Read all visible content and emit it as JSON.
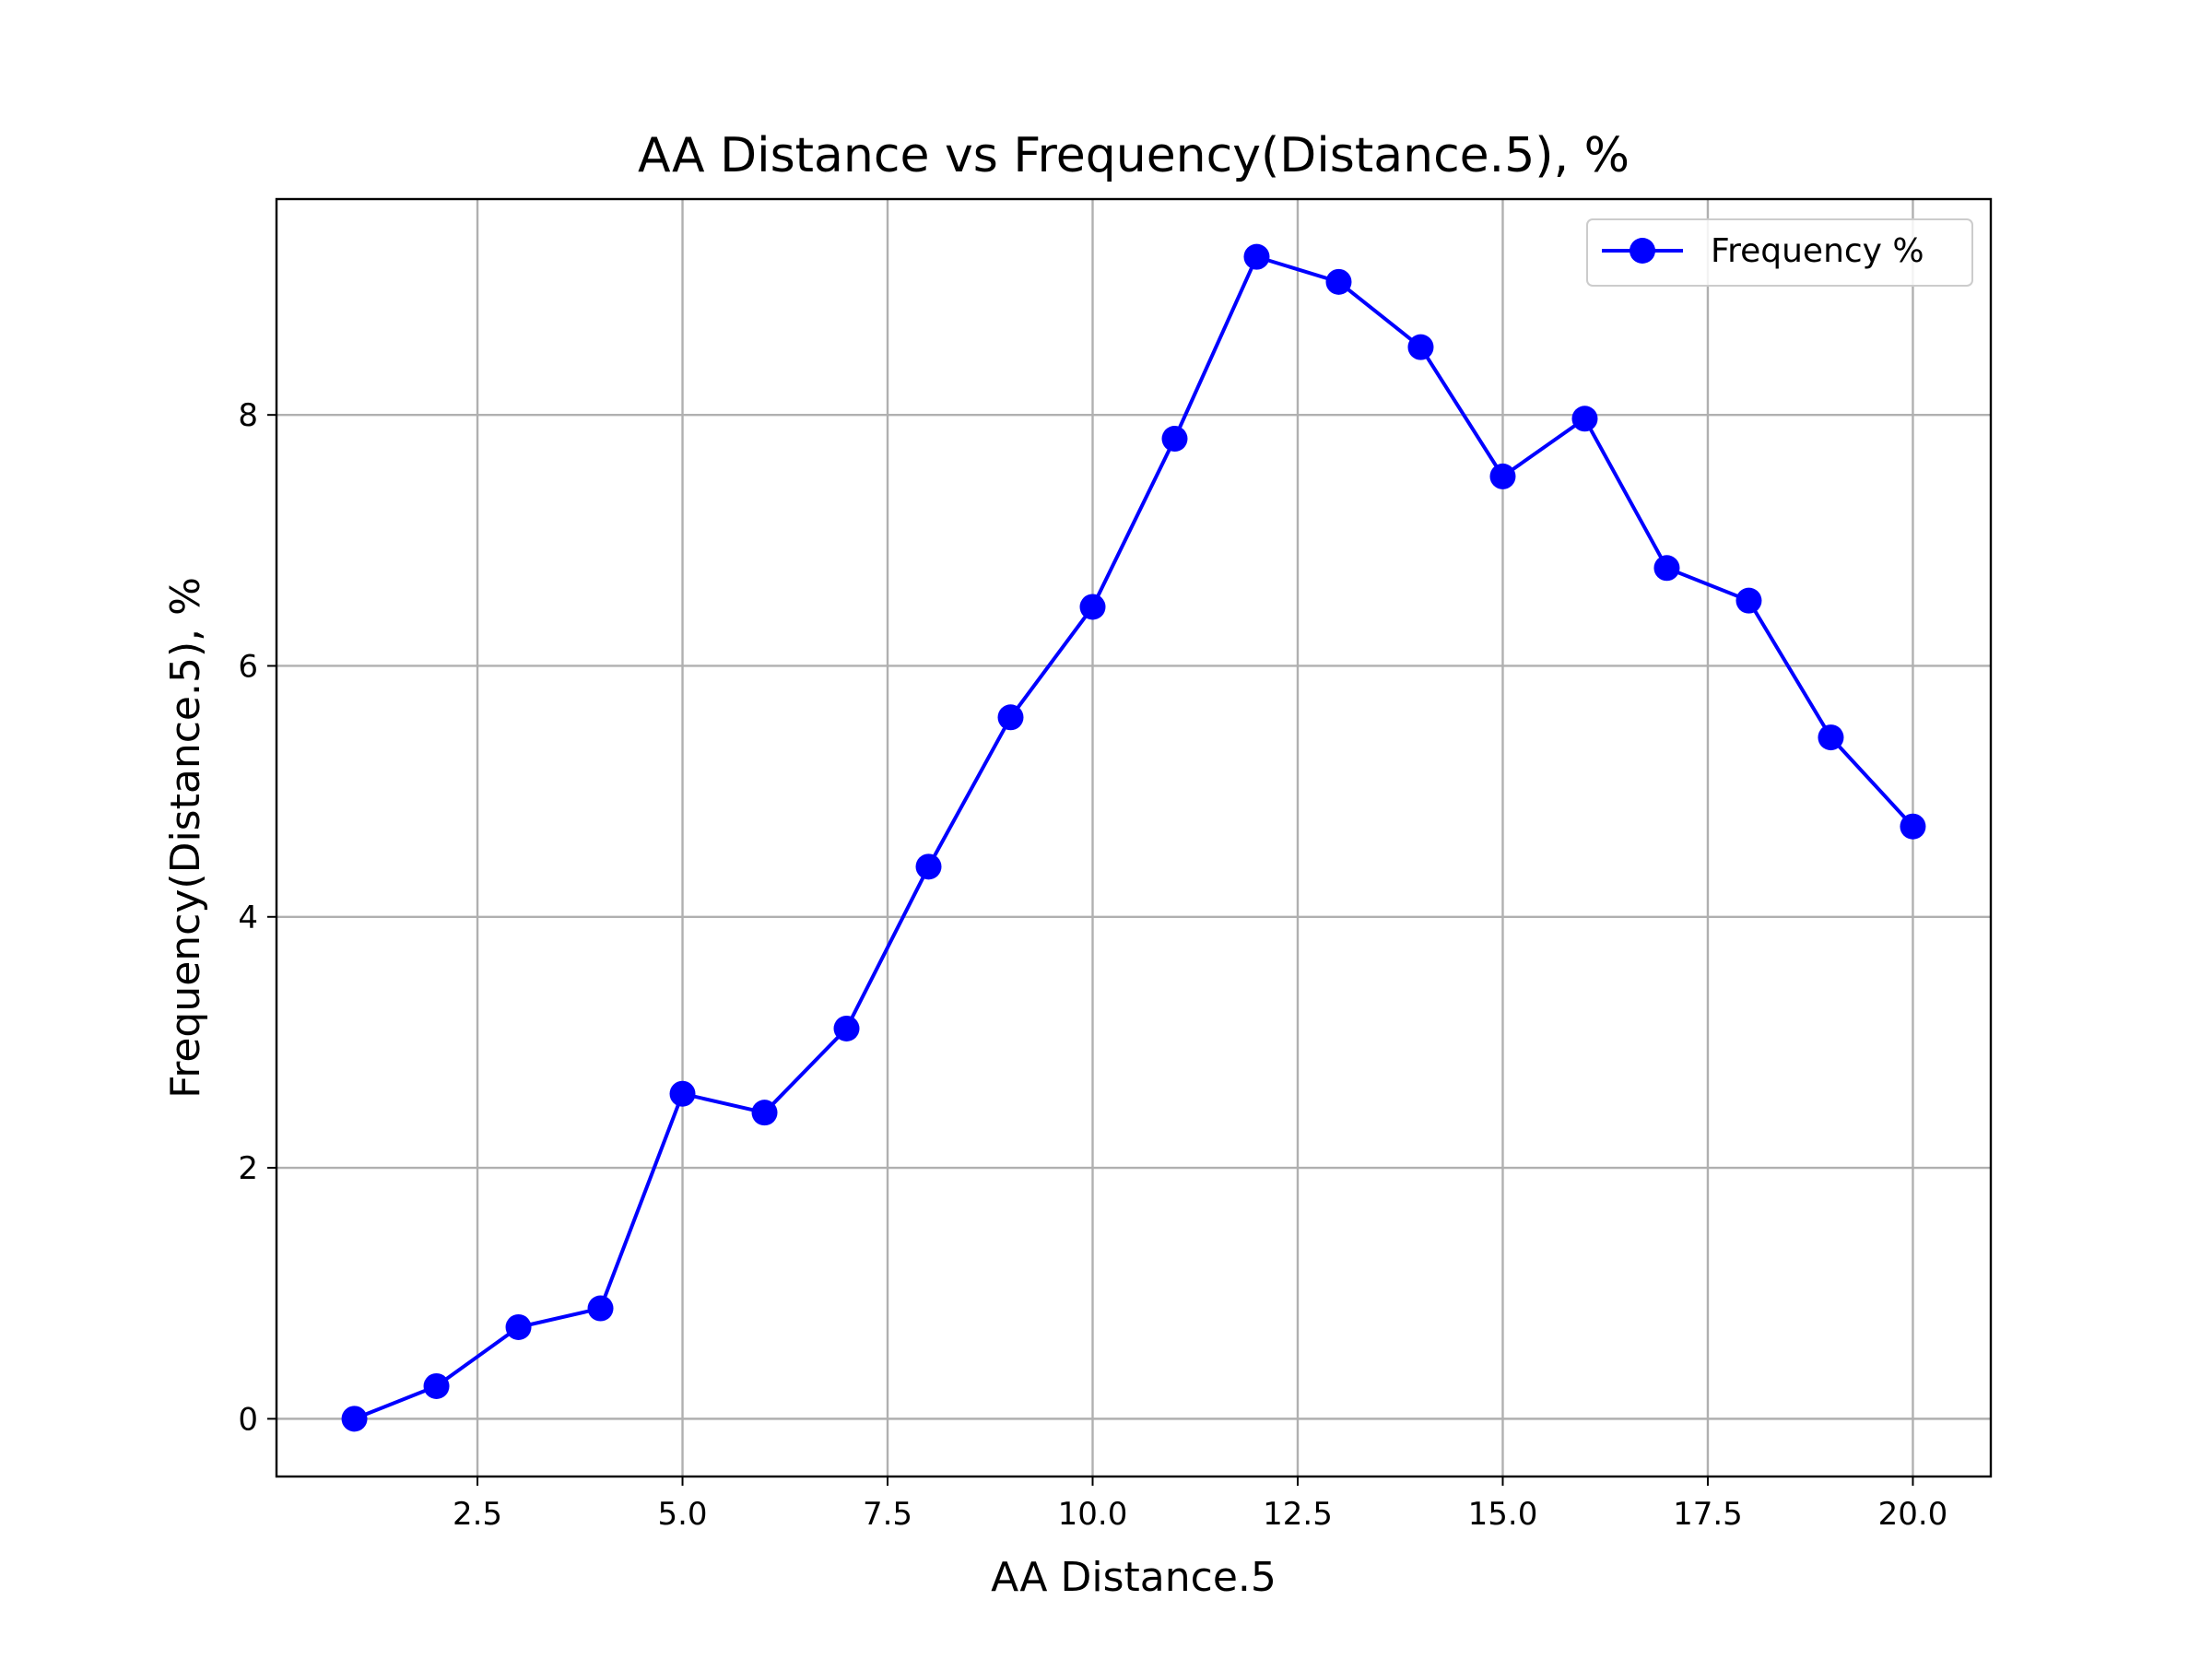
{
  "chart_data": {
    "type": "line",
    "title": "AA Distance vs Frequency(Distance.5), %",
    "xlabel": "AA Distance.5",
    "ylabel": "Frequency(Distance.5), %",
    "xlim": [
      0.05,
      20.95
    ],
    "ylim": [
      -0.46,
      9.72
    ],
    "xticks": [
      2.5,
      5.0,
      7.5,
      10.0,
      12.5,
      15.0,
      17.5,
      20.0
    ],
    "xtick_labels": [
      "2.5",
      "5.0",
      "7.5",
      "10.0",
      "12.5",
      "15.0",
      "17.5",
      "20.0"
    ],
    "yticks": [
      0,
      2,
      4,
      6,
      8
    ],
    "ytick_labels": [
      "0",
      "2",
      "4",
      "6",
      "8"
    ],
    "grid": true,
    "legend_position": "top-right",
    "series": [
      {
        "name": "Frequency %",
        "color": "#0000ff",
        "marker": "circle",
        "x": [
          1,
          2,
          3,
          4,
          5,
          6,
          7,
          8,
          9,
          10,
          11,
          12,
          13,
          14,
          15,
          16,
          17,
          18,
          19,
          20
        ],
        "y": [
          0.0,
          0.26,
          0.73,
          0.88,
          2.59,
          2.44,
          3.11,
          4.4,
          5.59,
          6.47,
          7.81,
          9.26,
          9.06,
          8.54,
          7.51,
          7.97,
          6.78,
          6.52,
          5.43,
          4.72
        ]
      }
    ]
  }
}
